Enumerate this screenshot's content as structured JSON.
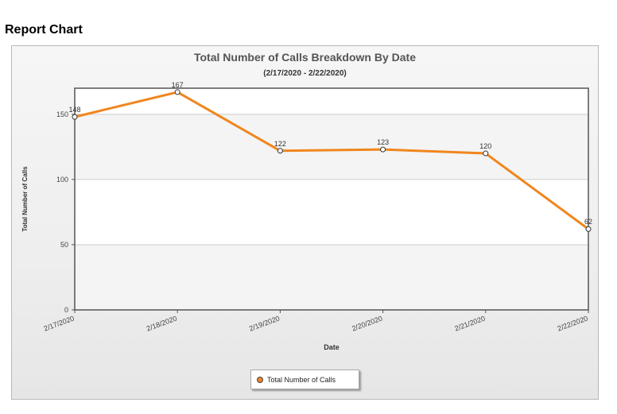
{
  "page": {
    "heading": "Report Chart"
  },
  "chart_data": {
    "type": "line",
    "title": "Total Number of Calls Breakdown By Date",
    "subtitle": "(2/17/2020 - 2/22/2020)",
    "xlabel": "Date",
    "ylabel": "Total Number of Calls",
    "categories": [
      "2/17/2020",
      "2/18/2020",
      "2/19/2020",
      "2/20/2020",
      "2/21/2020",
      "2/22/2020"
    ],
    "series": [
      {
        "name": "Total Number of Calls",
        "values": [
          148,
          167,
          122,
          123,
          120,
          62
        ],
        "color": "#f0861e"
      }
    ],
    "ylim": [
      0,
      170
    ],
    "yticks": [
      0,
      50,
      100,
      150
    ],
    "grid": true,
    "legend": "bottom-center"
  }
}
